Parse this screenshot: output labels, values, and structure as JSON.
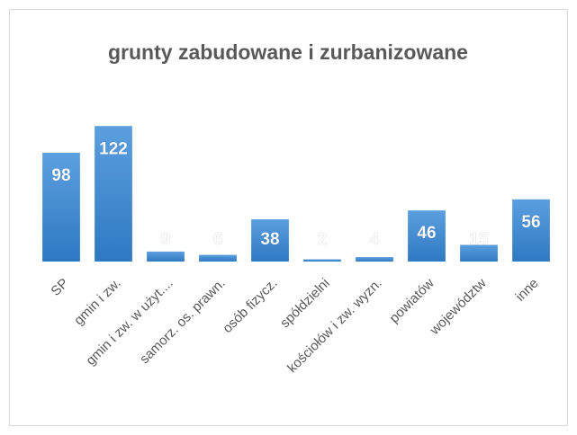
{
  "chart_data": {
    "type": "bar",
    "title": "grunty zabudowane i zurbanizowane",
    "categories": [
      "SP",
      "gmin i zw.",
      "gmin i zw. w użyt....",
      "samorz. os. prawn.",
      "osób fizycz.",
      "spółdzielni",
      "kościołów i zw. wyzn.",
      "powiatów",
      "województw",
      "inne"
    ],
    "values": [
      98,
      122,
      9,
      6,
      38,
      2,
      4,
      46,
      15,
      56
    ],
    "color": "#4a8fd4",
    "ylim": [
      0,
      140
    ]
  }
}
